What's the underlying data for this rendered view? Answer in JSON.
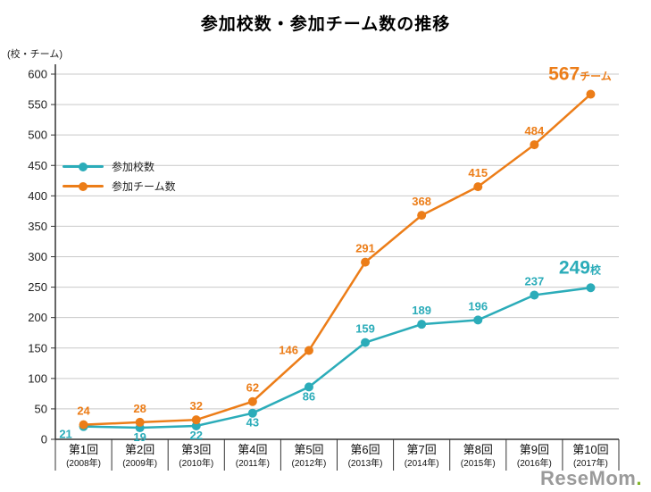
{
  "chart_data": {
    "type": "line",
    "title": "参加校数・参加チーム数の推移",
    "unit_label": "(校・チーム)",
    "categories": [
      "第1回",
      "第2回",
      "第3回",
      "第4回",
      "第5回",
      "第6回",
      "第7回",
      "第8回",
      "第9回",
      "第10回"
    ],
    "categories_sub": [
      "(2008年)",
      "(2009年)",
      "(2010年)",
      "(2011年)",
      "(2012年)",
      "(2013年)",
      "(2014年)",
      "(2015年)",
      "(2016年)",
      "(2017年)"
    ],
    "ylim": [
      0,
      600
    ],
    "ytick_step": 50,
    "grid": true,
    "legend_position": "upper-left",
    "xlabel": "",
    "ylabel": "",
    "series": [
      {
        "name": "参加校数",
        "color": "#2BACB9",
        "values": [
          21,
          19,
          22,
          43,
          86,
          159,
          189,
          196,
          237,
          249
        ],
        "final_suffix": "校",
        "label_pos": [
          "belowleft",
          "below",
          "below",
          "below",
          "below",
          "above",
          "above",
          "above",
          "above",
          "final"
        ]
      },
      {
        "name": "参加チーム数",
        "color": "#EC7D18",
        "values": [
          24,
          28,
          32,
          62,
          146,
          291,
          368,
          415,
          484,
          567
        ],
        "final_suffix": "チーム",
        "label_pos": [
          "above",
          "above",
          "above",
          "above",
          "left",
          "above",
          "above",
          "above",
          "above",
          "final"
        ]
      }
    ]
  },
  "watermark": {
    "text": "ReseMom",
    "dot": "."
  }
}
